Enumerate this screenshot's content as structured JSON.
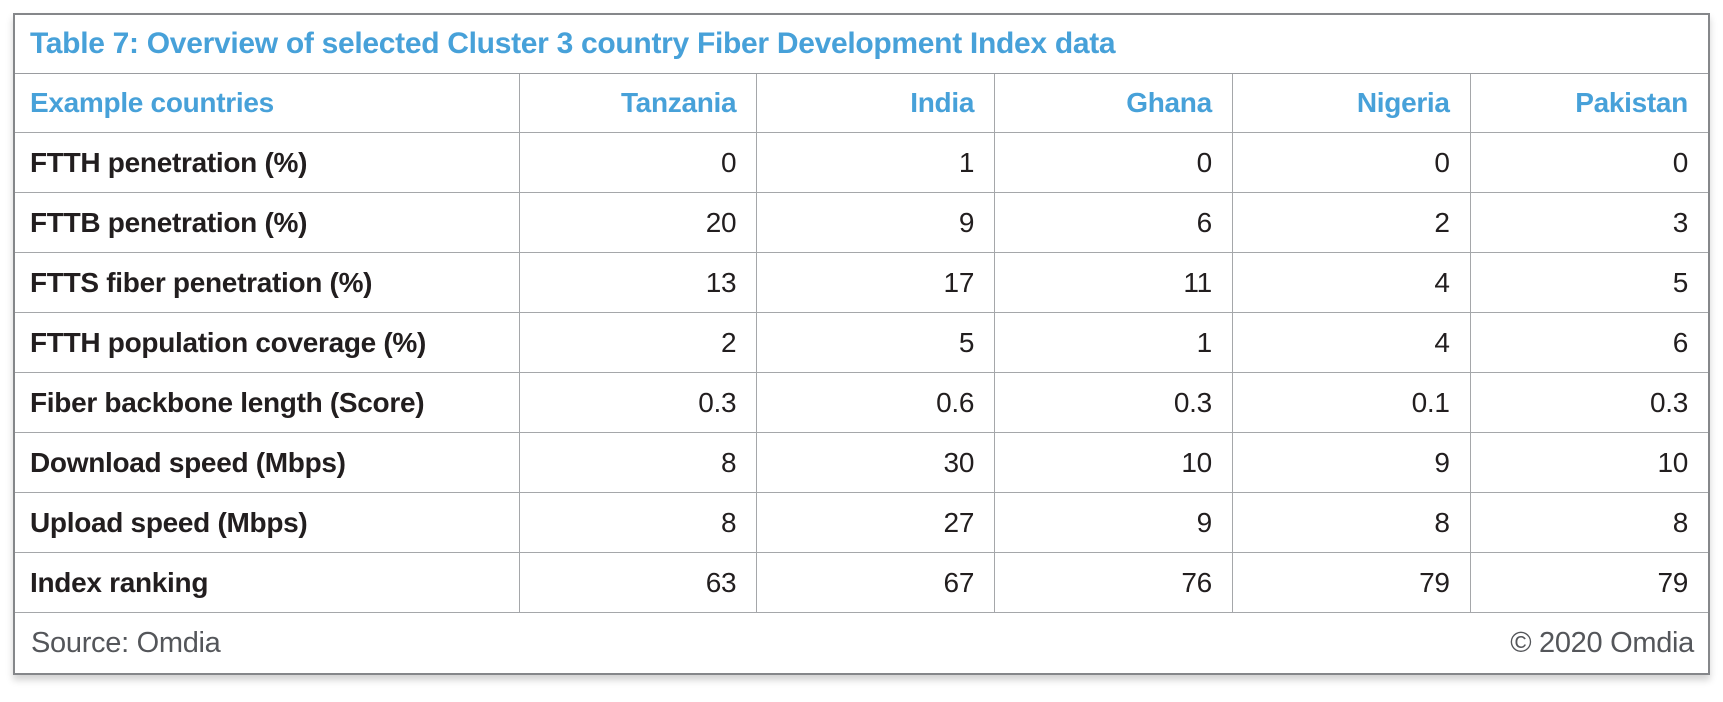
{
  "title": "Table 7: Overview of selected Cluster 3 country Fiber Development Index data",
  "colors": {
    "accent_blue": "#47A1D9",
    "body_text": "#221E1F",
    "footer_text": "#54565A",
    "grid_border": "#A5A7AA",
    "outer_border": "#85878A",
    "background": "#FFFFFF"
  },
  "table": {
    "header": [
      "Example countries",
      "Tanzania",
      "India",
      "Ghana",
      "Nigeria",
      "Pakistan"
    ],
    "rows": [
      {
        "label": "FTTH penetration (%)",
        "values": [
          "0",
          "1",
          "0",
          "0",
          "0"
        ]
      },
      {
        "label": "FTTB penetration (%)",
        "values": [
          "20",
          "9",
          "6",
          "2",
          "3"
        ]
      },
      {
        "label": "FTTS fiber penetration (%)",
        "values": [
          "13",
          "17",
          "11",
          "4",
          "5"
        ]
      },
      {
        "label": "FTTH population coverage (%)",
        "values": [
          "2",
          "5",
          "1",
          "4",
          "6"
        ]
      },
      {
        "label": "Fiber backbone length (Score)",
        "values": [
          "0.3",
          "0.6",
          "0.3",
          "0.1",
          "0.3"
        ]
      },
      {
        "label": "Download speed (Mbps)",
        "values": [
          "8",
          "30",
          "10",
          "9",
          "10"
        ]
      },
      {
        "label": "Upload speed (Mbps)",
        "values": [
          "8",
          "27",
          "9",
          "8",
          "8"
        ]
      },
      {
        "label": "Index ranking",
        "values": [
          "63",
          "67",
          "76",
          "79",
          "79"
        ]
      }
    ]
  },
  "footer": {
    "source": "Source: Omdia",
    "copyright": "© 2020 Omdia"
  },
  "chart_data": {
    "type": "table",
    "title": "Table 7: Overview of selected Cluster 3 country Fiber Development Index data",
    "columns": [
      "Example countries",
      "Tanzania",
      "India",
      "Ghana",
      "Nigeria",
      "Pakistan"
    ],
    "rows": [
      [
        "FTTH penetration (%)",
        0,
        1,
        0,
        0,
        0
      ],
      [
        "FTTB penetration (%)",
        20,
        9,
        6,
        2,
        3
      ],
      [
        "FTTS fiber penetration (%)",
        13,
        17,
        11,
        4,
        5
      ],
      [
        "FTTH population coverage (%)",
        2,
        5,
        1,
        4,
        6
      ],
      [
        "Fiber backbone length (Score)",
        0.3,
        0.6,
        0.3,
        0.1,
        0.3
      ],
      [
        "Download speed (Mbps)",
        8,
        30,
        10,
        9,
        10
      ],
      [
        "Upload speed (Mbps)",
        8,
        27,
        9,
        8,
        8
      ],
      [
        "Index ranking",
        63,
        67,
        76,
        79,
        79
      ]
    ],
    "source": "Source: Omdia",
    "copyright": "© 2020 Omdia"
  }
}
